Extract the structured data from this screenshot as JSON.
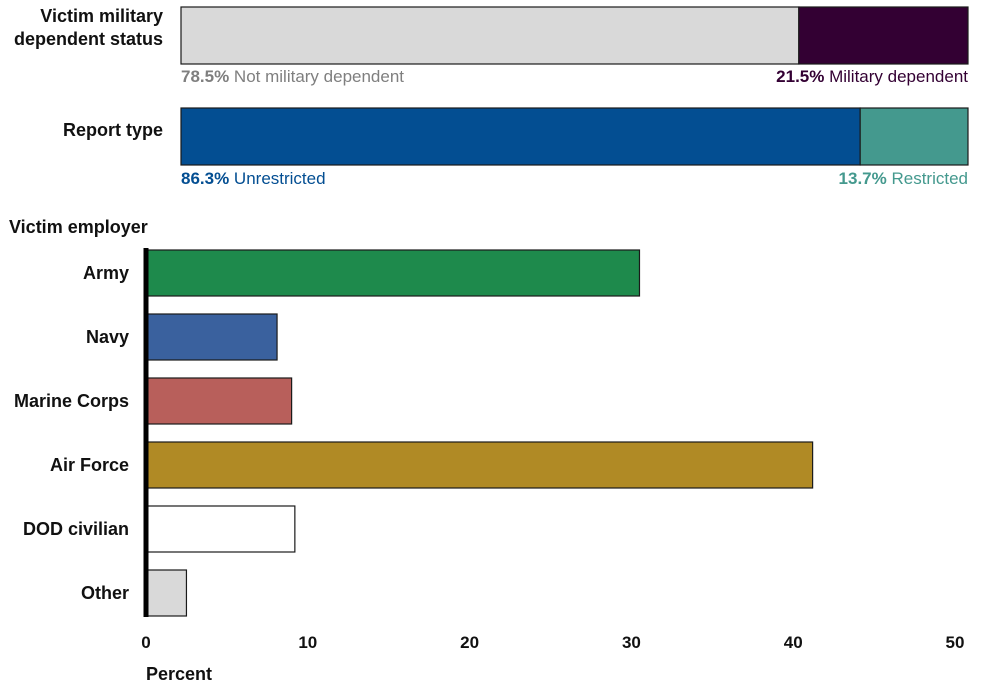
{
  "chart_data": [
    {
      "type": "bar",
      "stacked": true,
      "orientation": "horizontal",
      "category": "Victim military dependent status",
      "segments": [
        {
          "name": "Not military dependent",
          "value": 78.5,
          "value_label": "78.5%",
          "color": "#d9d9d9",
          "text_color": "#7f7f7f"
        },
        {
          "name": "Military dependent",
          "value": 21.5,
          "value_label": "21.5%",
          "color": "#330033",
          "text_color": "#330033"
        }
      ]
    },
    {
      "type": "bar",
      "stacked": true,
      "orientation": "horizontal",
      "category": "Report type",
      "segments": [
        {
          "name": "Unrestricted",
          "value": 86.3,
          "value_label": "86.3%",
          "color": "#034e92",
          "text_color": "#034e92"
        },
        {
          "name": "Restricted",
          "value": 13.7,
          "value_label": "13.7%",
          "color": "#44998e",
          "text_color": "#44998e"
        }
      ]
    },
    {
      "type": "bar",
      "orientation": "horizontal",
      "title": "Victim employer",
      "xlabel": "Percent",
      "xlim": [
        0,
        50
      ],
      "xticks": [
        0,
        10,
        20,
        30,
        40,
        50
      ],
      "categories": [
        "Army",
        "Navy",
        "Marine Corps",
        "Air Force",
        "DOD civilian",
        "Other"
      ],
      "values": [
        30.5,
        8.1,
        9.0,
        41.2,
        9.2,
        2.5
      ],
      "colors": [
        "#1e8a4c",
        "#3a619e",
        "#b85f5b",
        "#b08a25",
        "#ffffff",
        "#d9d9d9"
      ],
      "grid": false
    }
  ]
}
